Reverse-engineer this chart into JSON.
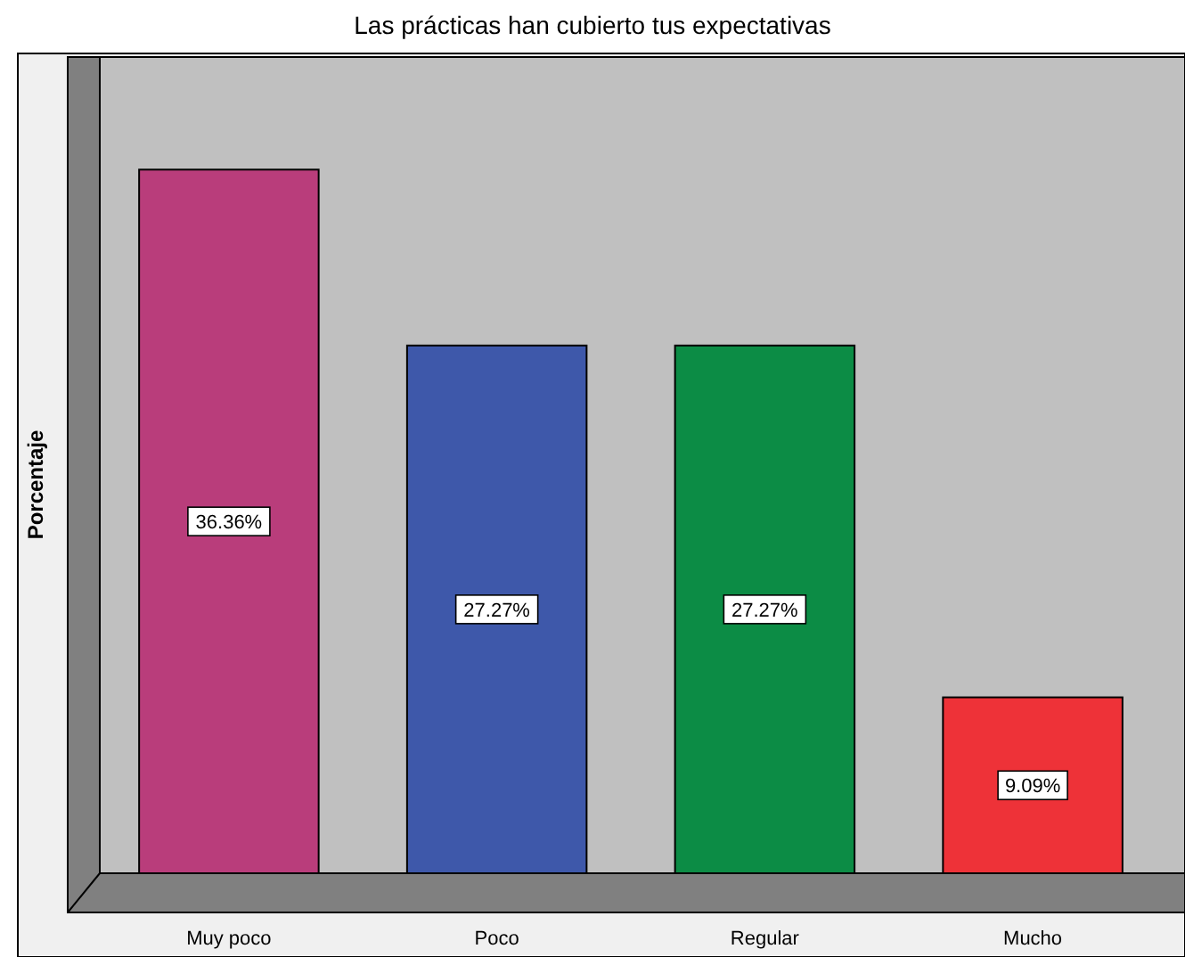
{
  "chart_data": {
    "type": "bar",
    "title": "Las prácticas han cubierto tus expectativas",
    "ylabel": "Porcentaje",
    "categories": [
      "Muy poco",
      "Poco",
      "Regular",
      "Mucho"
    ],
    "values": [
      36.36,
      27.27,
      27.27,
      9.09
    ],
    "colors": [
      "#b93d7b",
      "#3e58aa",
      "#0c8c45",
      "#ee3238"
    ],
    "value_labels": [
      "36.36%",
      "27.27%",
      "27.27%",
      "9.09%"
    ]
  }
}
